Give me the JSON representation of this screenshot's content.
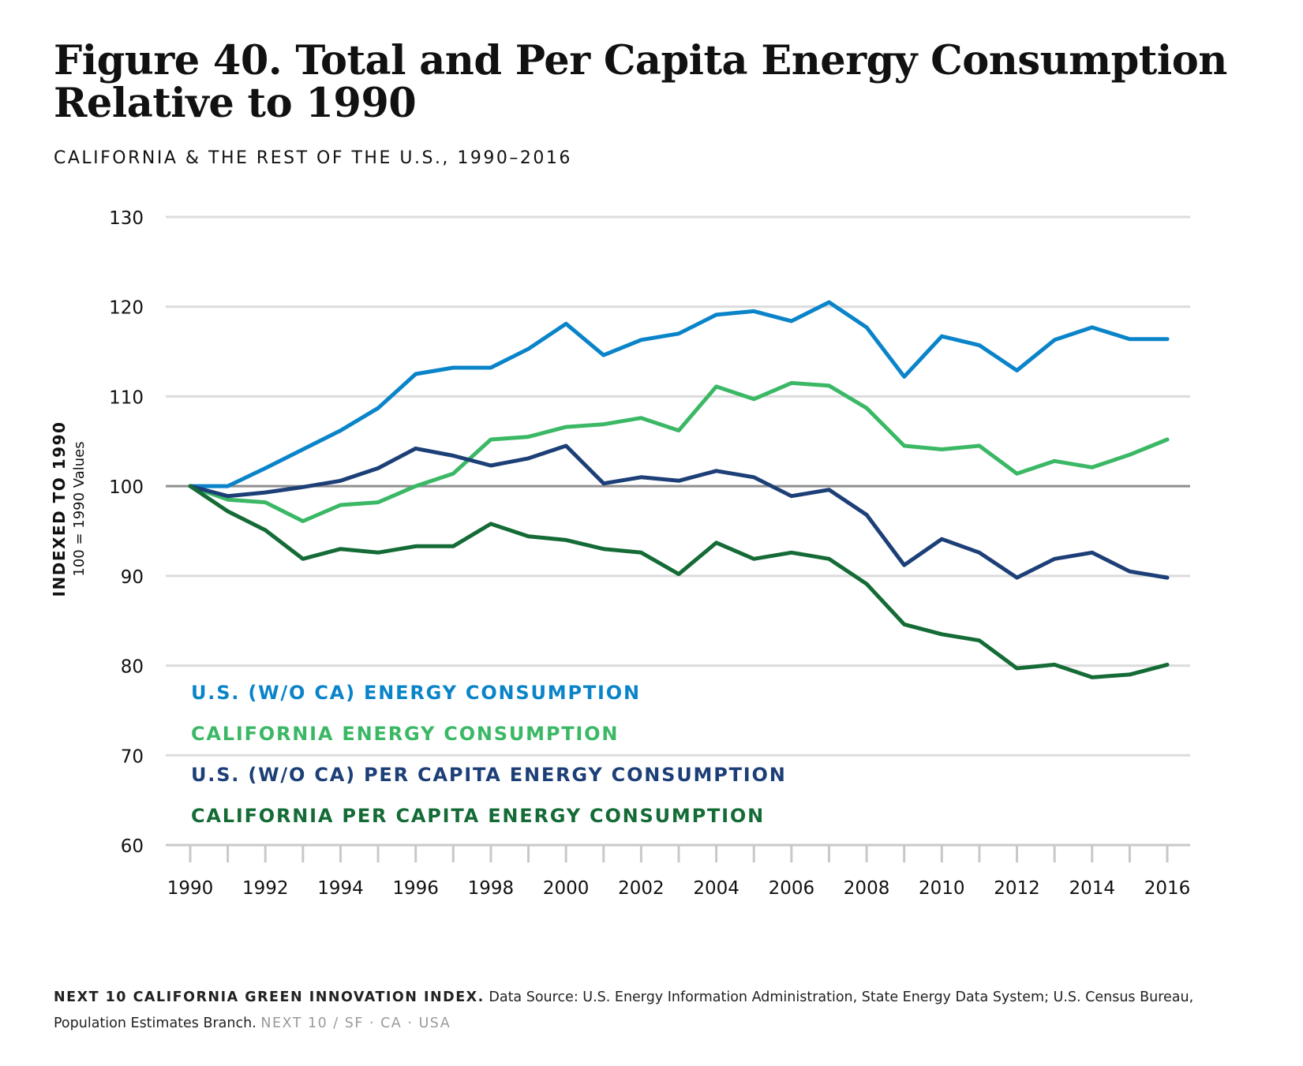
{
  "header": {
    "title": "Figure 40. Total and Per Capita Energy Consumption Relative to 1990",
    "subtitle": "CALIFORNIA & THE REST OF THE U.S., 1990–2016"
  },
  "footer": {
    "brand": "NEXT 10 CALIFORNIA GREEN INNOVATION INDEX.",
    "source": "Data Source: U.S. Energy Information Administration, State Energy Data System; U.S. Census Bureau, Population Estimates Branch.",
    "tail": "NEXT 10  /  SF · CA · USA"
  },
  "chart_data": {
    "type": "line",
    "title": "Figure 40. Total and Per Capita Energy Consumption Relative to 1990",
    "subtitle": "CALIFORNIA & THE REST OF THE U.S., 1990–2016",
    "ylabel": "INDEXED TO 1990",
    "ylabel_sub": "100 = 1990 Values",
    "xlabel": "",
    "ylim": [
      60,
      130
    ],
    "yticks": [
      60,
      70,
      80,
      90,
      100,
      110,
      120,
      130
    ],
    "xlim": [
      1990,
      2016
    ],
    "xtick_labels": [
      "1990",
      "1992",
      "1994",
      "1996",
      "1998",
      "2000",
      "2002",
      "2004",
      "2006",
      "2008",
      "2010",
      "2012",
      "2014",
      "2016"
    ],
    "reference_line": 100,
    "grid": "horizontal",
    "legend": "inside bottom-left, colored text labels",
    "x": [
      1990,
      1991,
      1992,
      1993,
      1994,
      1995,
      1996,
      1997,
      1998,
      1999,
      2000,
      2001,
      2002,
      2003,
      2004,
      2005,
      2006,
      2007,
      2008,
      2009,
      2010,
      2011,
      2012,
      2013,
      2014,
      2015,
      2016
    ],
    "series": [
      {
        "name": "U.S. (W/O CA) ENERGY CONSUMPTION",
        "color": "#0a84c9",
        "values": [
          100,
          100,
          102,
          104.1,
          106.2,
          108.7,
          112.5,
          113.2,
          113.2,
          115.3,
          118.1,
          114.6,
          116.3,
          117,
          119.1,
          119.5,
          118.4,
          120.5,
          117.7,
          112.2,
          116.7,
          115.7,
          112.9,
          116.3,
          117.7,
          116.4,
          116.4
        ]
      },
      {
        "name": "CALIFORNIA ENERGY CONSUMPTION",
        "color": "#3bb865",
        "values": [
          100,
          98.5,
          98.2,
          96.1,
          97.9,
          98.2,
          100,
          101.4,
          105.2,
          105.5,
          106.6,
          106.9,
          107.6,
          106.2,
          111.1,
          109.7,
          111.5,
          111.2,
          108.7,
          104.5,
          104.1,
          104.5,
          101.4,
          102.8,
          102.1,
          103.5,
          105.2
        ]
      },
      {
        "name": "U.S. (W/O CA) PER CAPITA ENERGY CONSUMPTION",
        "color": "#1d3f77",
        "values": [
          100,
          98.9,
          99.3,
          99.9,
          100.6,
          102,
          104.2,
          103.4,
          102.3,
          103.1,
          104.5,
          100.3,
          101,
          100.6,
          101.7,
          101,
          98.9,
          99.6,
          96.8,
          91.2,
          94.1,
          92.6,
          89.8,
          91.9,
          92.6,
          90.5,
          89.8
        ]
      },
      {
        "name": "CALIFORNIA PER CAPITA ENERGY CONSUMPTION",
        "color": "#146b36",
        "values": [
          100,
          97.2,
          95.1,
          91.9,
          93,
          92.6,
          93.3,
          93.3,
          95.8,
          94.4,
          94,
          93,
          92.6,
          90.2,
          93.7,
          91.9,
          92.6,
          91.9,
          89.1,
          84.6,
          83.5,
          82.8,
          79.7,
          80.1,
          78.7,
          79,
          80.1
        ]
      }
    ]
  }
}
